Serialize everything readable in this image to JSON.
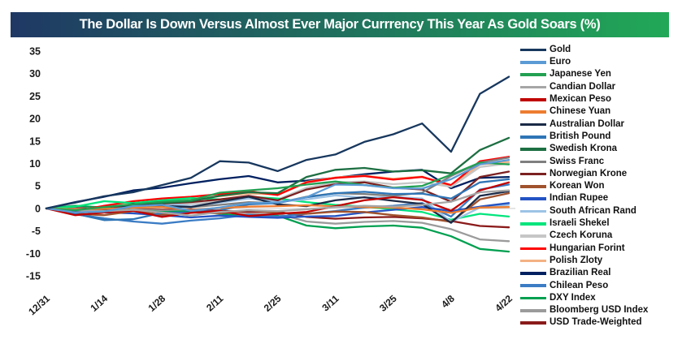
{
  "title": {
    "text": "The Dollar Is Down Versus Almost Ever Major Currrency This Year As Gold Soars (%)",
    "gradient_left": "#1F3864",
    "gradient_right": "#21A857",
    "text_color": "#FFFFFF"
  },
  "chart_data": {
    "type": "line",
    "title": "The Dollar Is Down Versus Almost Ever Major Currrency This Year As Gold Soars (%)",
    "xlabel": "",
    "ylabel": "",
    "ylim": [
      -15,
      35
    ],
    "yticks": [
      35,
      30,
      25,
      20,
      15,
      10,
      5,
      0,
      -5,
      -10,
      -15
    ],
    "grid": "zero-line-only",
    "zero_gridline_color": "#D9D9D9",
    "legend_position": "right",
    "x": [
      "12/31",
      "1/7",
      "1/14",
      "1/21",
      "1/28",
      "2/4",
      "2/11",
      "2/18",
      "2/25",
      "3/4",
      "3/11",
      "3/18",
      "3/25",
      "4/1",
      "4/8",
      "4/15",
      "4/22"
    ],
    "x_tick_labels": [
      "12/31",
      "1/14",
      "1/28",
      "2/11",
      "2/25",
      "3/11",
      "3/25",
      "4/8",
      "4/22"
    ],
    "series": [
      {
        "name": "Gold",
        "color": "#17375E",
        "values": [
          0,
          1.3,
          2.7,
          3.6,
          5.2,
          6.8,
          10.5,
          10.2,
          8.3,
          10.8,
          12.0,
          14.8,
          16.5,
          18.9,
          12.6,
          25.5,
          29.3
        ]
      },
      {
        "name": "Euro",
        "color": "#5B9BD5",
        "values": [
          0,
          -0.9,
          -0.7,
          0.5,
          0.8,
          -0.5,
          0.2,
          1.2,
          1.3,
          2.5,
          5.3,
          5.2,
          4.5,
          4.4,
          6.5,
          9.8,
          10.8
        ]
      },
      {
        "name": "Japanese Yen",
        "color": "#22A052",
        "values": [
          0,
          -0.4,
          0.3,
          0.9,
          1.5,
          1.8,
          3.5,
          4.0,
          4.5,
          5.3,
          6.0,
          5.2,
          4.6,
          5.0,
          7.5,
          10.2,
          9.8
        ]
      },
      {
        "name": "Candian Dollar",
        "color": "#A6A6A6",
        "values": [
          0,
          -0.4,
          -0.6,
          -0.3,
          -0.9,
          -1.6,
          -0.8,
          -0.4,
          -0.6,
          -0.2,
          0.3,
          0.6,
          0.4,
          0.8,
          1.5,
          3.6,
          4.0
        ]
      },
      {
        "name": "Mexican Peso",
        "color": "#C00000",
        "values": [
          0,
          -1.5,
          -0.9,
          -0.5,
          -1.9,
          -1.0,
          -0.5,
          -1.7,
          -1.2,
          -0.8,
          0.5,
          1.8,
          2.5,
          1.9,
          -0.5,
          4.0,
          5.8
        ]
      },
      {
        "name": "Chinese Yuan",
        "color": "#ED7D31",
        "values": [
          0,
          -0.2,
          -0.1,
          0.2,
          0.3,
          -0.3,
          0.1,
          0.4,
          0.5,
          0.7,
          0.5,
          0.3,
          0.2,
          -0.2,
          -1.0,
          0.2,
          0.3
        ]
      },
      {
        "name": "Australian Dollar",
        "color": "#1B2A47",
        "values": [
          0,
          -0.8,
          -0.3,
          1.0,
          0.6,
          0.3,
          1.5,
          2.6,
          0.9,
          0.5,
          1.8,
          2.5,
          1.7,
          1.0,
          -3.2,
          2.8,
          3.8
        ]
      },
      {
        "name": "British Pound",
        "color": "#2E75B6",
        "values": [
          0,
          -1.2,
          -2.6,
          -2.4,
          -1.0,
          -0.9,
          -0.4,
          0.9,
          1.2,
          2.5,
          3.4,
          3.7,
          3.2,
          3.3,
          2.2,
          5.8,
          6.5
        ]
      },
      {
        "name": "Swedish Krona",
        "color": "#1D6F42",
        "values": [
          0,
          -0.7,
          -0.3,
          0.8,
          1.2,
          1.6,
          2.8,
          3.6,
          3.4,
          7.0,
          8.6,
          9.0,
          8.2,
          8.5,
          7.8,
          13.0,
          15.7
        ]
      },
      {
        "name": "Swiss Franc",
        "color": "#7F7F7F",
        "values": [
          0,
          -0.7,
          -0.4,
          0.2,
          0.5,
          0.3,
          0.8,
          1.4,
          1.2,
          2.6,
          3.4,
          3.2,
          2.8,
          3.5,
          7.2,
          10.2,
          11.3
        ]
      },
      {
        "name": "Norwegian Krone",
        "color": "#7C2020",
        "values": [
          0,
          -1.0,
          -0.6,
          0.3,
          1.1,
          1.4,
          2.0,
          2.8,
          1.8,
          4.2,
          5.4,
          5.8,
          4.6,
          4.2,
          1.5,
          7.0,
          8.2
        ]
      },
      {
        "name": "Korean Won",
        "color": "#A0522D",
        "values": [
          0,
          -1.2,
          -1.5,
          -0.6,
          -1.4,
          -0.9,
          -1.1,
          -0.4,
          -1.0,
          -1.2,
          -0.7,
          -0.8,
          -1.5,
          -2.0,
          -3.0,
          2.0,
          3.4
        ]
      },
      {
        "name": "Indian Rupee",
        "color": "#2353C4",
        "values": [
          0,
          -0.3,
          -0.9,
          -1.1,
          -1.5,
          -2.0,
          -1.6,
          -1.9,
          -2.1,
          -1.8,
          -1.7,
          -0.9,
          -0.3,
          0.3,
          -0.6,
          0.4,
          1.2
        ]
      },
      {
        "name": "South African Rand",
        "color": "#9DC3E6",
        "values": [
          0,
          -1.0,
          -0.3,
          0.6,
          1.2,
          0.5,
          1.3,
          2.2,
          1.5,
          2.0,
          2.9,
          2.4,
          2.6,
          2.2,
          -3.0,
          0.2,
          0.8
        ]
      },
      {
        "name": "Israeli Shekel",
        "color": "#00E57C",
        "values": [
          0,
          0.4,
          1.6,
          1.2,
          1.8,
          2.3,
          2.0,
          2.6,
          2.2,
          1.4,
          0.8,
          0.4,
          -0.2,
          -0.8,
          -2.5,
          -1.2,
          -1.8
        ]
      },
      {
        "name": "Czech Koruna",
        "color": "#C6C6C6",
        "values": [
          0,
          -0.9,
          -0.5,
          0.2,
          0.9,
          1.0,
          1.6,
          2.2,
          2.0,
          4.6,
          5.8,
          6.0,
          5.4,
          5.8,
          4.8,
          9.2,
          10.0
        ]
      },
      {
        "name": "Hungarian Forint",
        "color": "#FF0000",
        "values": [
          0,
          -0.6,
          0.6,
          1.6,
          2.2,
          2.6,
          3.2,
          3.8,
          3.0,
          5.8,
          6.8,
          7.2,
          6.4,
          7.0,
          5.2,
          10.5,
          11.5
        ]
      },
      {
        "name": "Polish Zloty",
        "color": "#F4B183",
        "values": [
          0,
          -0.5,
          0.5,
          1.2,
          1.6,
          2.1,
          2.7,
          3.3,
          3.1,
          5.9,
          6.9,
          7.3,
          6.6,
          7.1,
          4.8,
          9.8,
          10.3
        ]
      },
      {
        "name": "Brazilian Real",
        "color": "#002060",
        "values": [
          0,
          1.4,
          2.6,
          4.0,
          4.6,
          5.6,
          6.5,
          7.2,
          5.8,
          6.2,
          6.8,
          7.6,
          8.2,
          8.6,
          4.5,
          6.8,
          7.0
        ]
      },
      {
        "name": "Chilean Peso",
        "color": "#3B7CC4",
        "values": [
          0,
          -1.3,
          -2.2,
          -2.9,
          -3.4,
          -2.7,
          -2.2,
          -1.4,
          -1.8,
          -1.2,
          -0.6,
          0.2,
          0.6,
          1.2,
          -1.8,
          4.2,
          5.3
        ]
      },
      {
        "name": "DXY Index",
        "color": "#00A050",
        "values": [
          0,
          0.6,
          0.2,
          -0.4,
          -0.8,
          -0.6,
          -1.2,
          -1.8,
          -1.6,
          -3.8,
          -4.4,
          -4.0,
          -3.8,
          -4.3,
          -6.2,
          -9.0,
          -9.6
        ]
      },
      {
        "name": "Bloomberg USD Index",
        "color": "#9B9B9B",
        "values": [
          0,
          0.5,
          0.2,
          -0.2,
          -0.5,
          -0.4,
          -0.9,
          -1.3,
          -1.2,
          -2.9,
          -3.4,
          -3.0,
          -2.8,
          -3.2,
          -4.6,
          -6.9,
          -7.3
        ]
      },
      {
        "name": "USD Trade-Weighted",
        "color": "#8B1A1A",
        "values": [
          0,
          0.3,
          0.1,
          -0.1,
          -0.3,
          -0.2,
          -0.5,
          -0.8,
          -0.7,
          -1.9,
          -2.3,
          -2.0,
          -1.9,
          -2.2,
          -2.8,
          -3.9,
          -4.2
        ]
      }
    ]
  }
}
